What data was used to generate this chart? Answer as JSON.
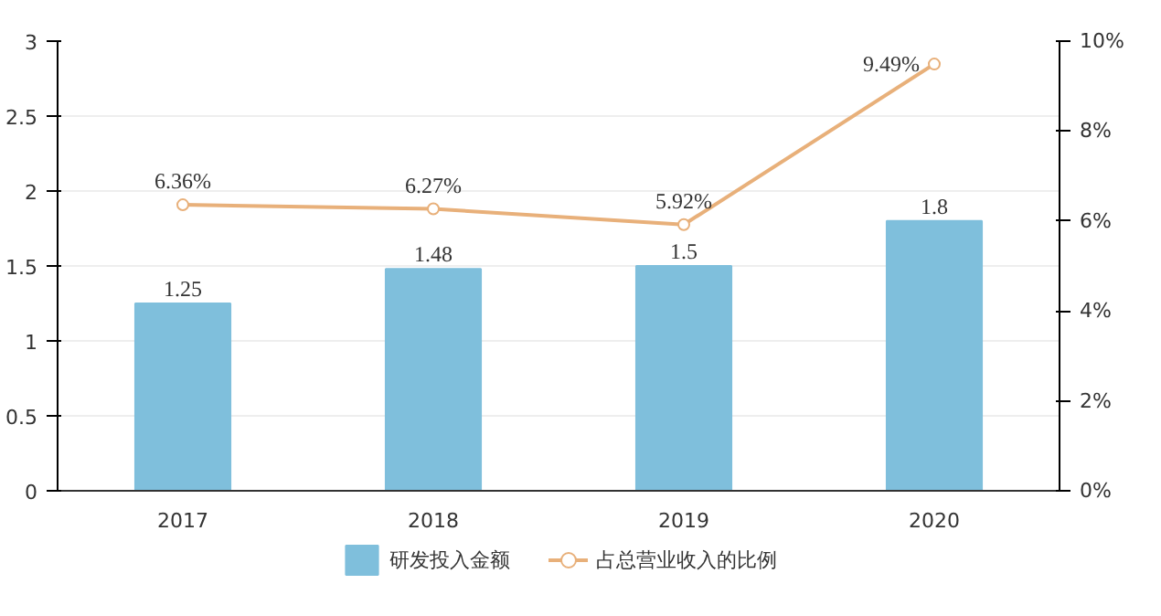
{
  "chart_data": {
    "type": "bar",
    "categories": [
      "2017",
      "2018",
      "2019",
      "2020"
    ],
    "series": [
      {
        "name": "研发投入金额",
        "type": "bar",
        "color": "#7fbfdc",
        "values": [
          1.25,
          1.48,
          1.5,
          1.8
        ]
      },
      {
        "name": "占总营业收入的比例",
        "type": "line",
        "axis": "y2",
        "color": "#e8b07a",
        "marker": "circle",
        "values": [
          6.36,
          6.27,
          5.92,
          9.49
        ],
        "value_labels": [
          "6.36%",
          "6.27%",
          "5.92%",
          "9.49%"
        ]
      }
    ],
    "ylim": [
      0,
      3
    ],
    "yticks": [
      0,
      0.5,
      1,
      1.5,
      2,
      2.5,
      3
    ],
    "y2lim": [
      0,
      10
    ],
    "y2ticks": [
      {
        "value": 0,
        "label": "0%"
      },
      {
        "value": 2,
        "label": "2%"
      },
      {
        "value": 4,
        "label": "4%"
      },
      {
        "value": 6,
        "label": "6%"
      },
      {
        "value": 8,
        "label": "8%"
      },
      {
        "value": 10,
        "label": "10%"
      }
    ],
    "grid": "y",
    "legend": "bottom",
    "data_labels": true
  }
}
